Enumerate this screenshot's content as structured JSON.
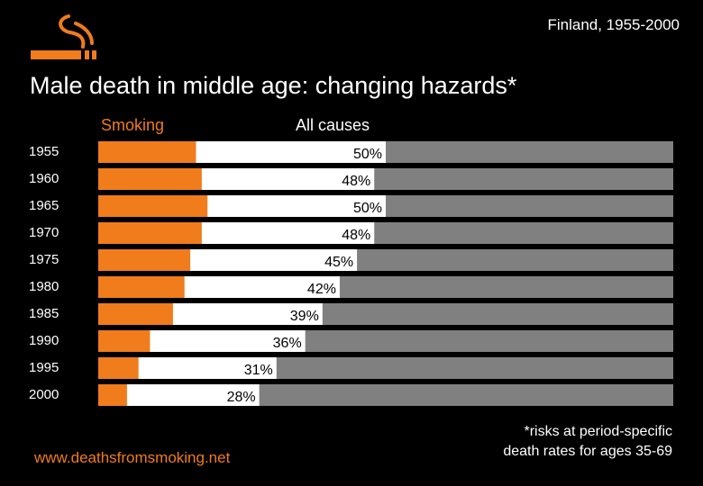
{
  "header": {
    "region": "Finland, 1955-2000",
    "title": "Male death in middle age: changing hazards*"
  },
  "legend": {
    "smoking_label": "Smoking",
    "all_causes_label": "All causes"
  },
  "icons": {
    "logo": "cigarette-smoke-icon"
  },
  "colors": {
    "smoking": "#f07c1c",
    "other": "#ffffff",
    "remainder": "#808080",
    "background": "#000000"
  },
  "chart_data": {
    "type": "bar",
    "stacked": true,
    "orientation": "horizontal",
    "categories": [
      "1955",
      "1960",
      "1965",
      "1970",
      "1975",
      "1980",
      "1985",
      "1990",
      "1995",
      "2000"
    ],
    "series": [
      {
        "name": "Smoking",
        "values": [
          17,
          18,
          19,
          18,
          16,
          15,
          13,
          9,
          7,
          5
        ]
      },
      {
        "name": "All causes",
        "values": [
          50,
          48,
          50,
          48,
          45,
          42,
          39,
          36,
          31,
          28
        ]
      }
    ],
    "smoking_labels": [
      "17",
      "18",
      "19",
      "18",
      "16",
      "15",
      "13",
      "9",
      "7",
      "5"
    ],
    "all_causes_labels": [
      "50%",
      "48%",
      "50%",
      "48%",
      "45%",
      "42%",
      "39%",
      "36%",
      "31%",
      "28%"
    ],
    "xlim": [
      0,
      100
    ]
  },
  "footer": {
    "url": "www.deathsfromsmoking.net",
    "footnote_line1": "*risks at period-specific",
    "footnote_line2": "death rates for ages 35-69"
  }
}
